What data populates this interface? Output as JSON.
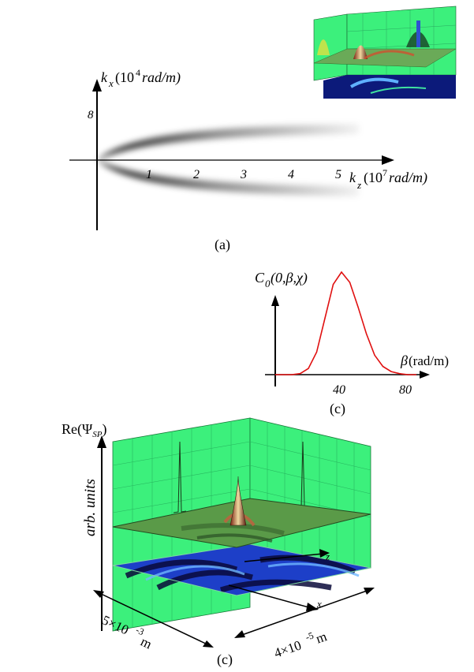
{
  "panel_a": {
    "ylabel_k": "k",
    "ylabel_sub": "x",
    "ylabel_paren_open": "(10",
    "ylabel_exp": "4",
    "ylabel_unit": "rad/m)",
    "ytick": "8",
    "xticks": [
      "1",
      "2",
      "3",
      "4",
      "5"
    ],
    "xlabel_k": "k",
    "xlabel_sub": "z",
    "xlabel_paren_open": "(10",
    "xlabel_exp": "7",
    "xlabel_unit": "rad/m)",
    "caption": "(a)"
  },
  "panel_c_plot": {
    "ylabel_C": "C",
    "ylabel_sub": "0",
    "ylabel_args": "(0,β,χ)",
    "xlabel_beta": "β",
    "xlabel_unit": " (rad/m)",
    "xticks": [
      "40",
      "80"
    ],
    "caption": "(c)",
    "curve_color": "#e01010",
    "chart_data": {
      "type": "line",
      "x": [
        0,
        10,
        15,
        20,
        25,
        30,
        35,
        40,
        45,
        50,
        55,
        60,
        65,
        70,
        75,
        80,
        85
      ],
      "y": [
        0.0,
        0.0,
        0.01,
        0.06,
        0.22,
        0.55,
        0.88,
        1.0,
        0.9,
        0.66,
        0.4,
        0.19,
        0.08,
        0.03,
        0.01,
        0.0,
        0.0
      ],
      "xticks": [
        40,
        80
      ],
      "xlim": [
        0,
        90
      ],
      "ylim": [
        0,
        1.1
      ]
    }
  },
  "panel_c_3d": {
    "title_re": "Re(Ψ",
    "title_sub": "SP",
    "title_close": ")",
    "ylabel": "arb. units",
    "axis_z": "z",
    "axis_x": "x",
    "dim_left_base": "5×10",
    "dim_left_exp": "-3",
    "dim_left_unit": "m",
    "dim_right_base": "4×10",
    "dim_right_exp": "-5",
    "dim_right_unit": " m",
    "caption": "(c)",
    "colors": {
      "wall": "#3cf07c",
      "surface": "#5a9a48",
      "floor": "#2f5fe6"
    }
  }
}
